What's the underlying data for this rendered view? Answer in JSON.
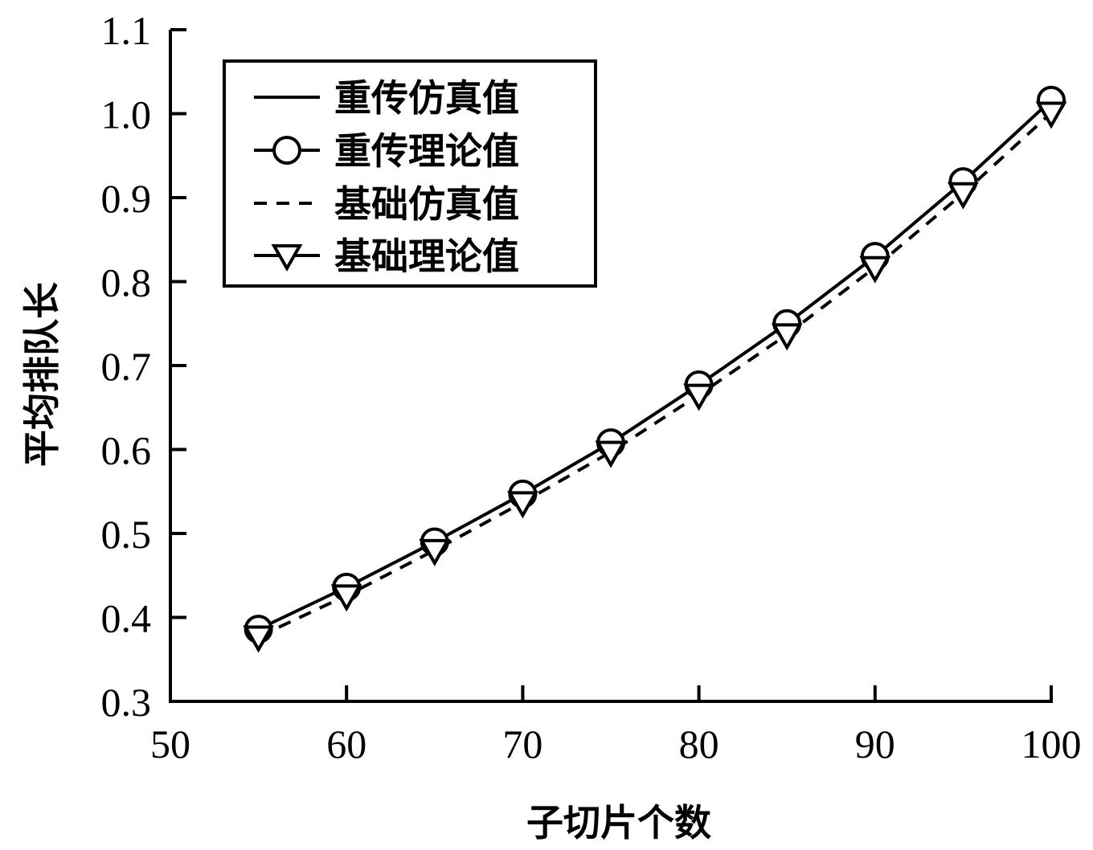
{
  "chart_data": {
    "type": "line",
    "title": "",
    "xlabel": "子切片个数",
    "ylabel": "平均排队长",
    "xlim": [
      50,
      100
    ],
    "ylim": [
      0.3,
      1.1
    ],
    "xticks": [
      50,
      60,
      70,
      80,
      90,
      100
    ],
    "yticks": [
      0.3,
      0.4,
      0.5,
      0.6,
      0.7,
      0.8,
      0.9,
      1.0,
      1.1
    ],
    "xtick_labels": [
      "50",
      "60",
      "70",
      "80",
      "90",
      "100"
    ],
    "ytick_labels": [
      "0.3",
      "0.4",
      "0.5",
      "0.6",
      "0.7",
      "0.8",
      "0.9",
      "1.0",
      "1.1"
    ],
    "grid": false,
    "legend_position": "top-left",
    "x": [
      55,
      60,
      65,
      70,
      75,
      80,
      85,
      90,
      95,
      100
    ],
    "series": [
      {
        "name": "重传仿真值",
        "style": "solid",
        "marker": "none",
        "values": [
          0.386,
          0.436,
          0.49,
          0.547,
          0.608,
          0.677,
          0.75,
          0.83,
          0.919,
          1.016
        ]
      },
      {
        "name": "重传理论值",
        "style": "solid",
        "marker": "circle",
        "values": [
          0.386,
          0.436,
          0.49,
          0.547,
          0.608,
          0.677,
          0.75,
          0.83,
          0.919,
          1.016
        ]
      },
      {
        "name": "基础仿真值",
        "style": "dashed",
        "marker": "none",
        "values": [
          0.377,
          0.426,
          0.48,
          0.537,
          0.597,
          0.665,
          0.737,
          0.817,
          0.905,
          1.001
        ]
      },
      {
        "name": "基础理论值",
        "style": "solid",
        "marker": "triangle-down",
        "values": [
          0.377,
          0.426,
          0.48,
          0.537,
          0.597,
          0.665,
          0.737,
          0.817,
          0.905,
          1.001
        ]
      }
    ],
    "colors": {
      "line": "#000000",
      "background": "#ffffff"
    }
  }
}
